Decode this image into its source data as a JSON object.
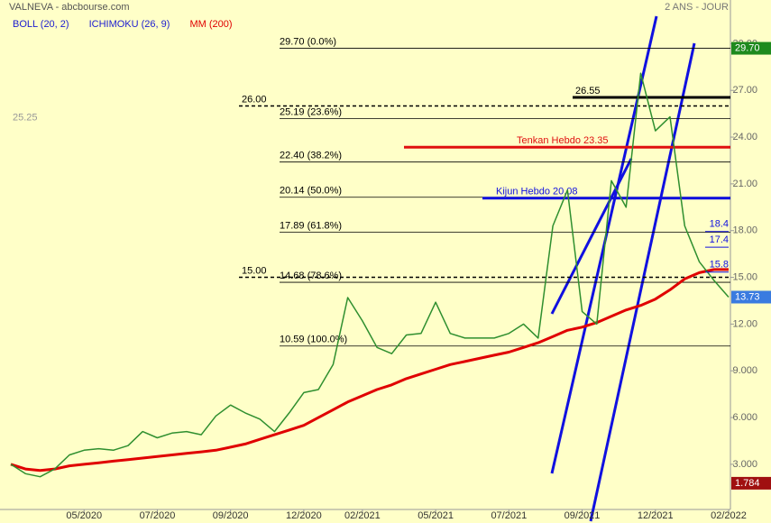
{
  "chart_data": {
    "type": "line",
    "title": "VALNEVA - abcbourse.com",
    "period": "2 ANS - JOUR",
    "categories": [
      null,
      null,
      null,
      null,
      null,
      "05/2020",
      null,
      null,
      null,
      null,
      "07/2020",
      null,
      null,
      null,
      null,
      "09/2020",
      null,
      null,
      null,
      null,
      "12/2020",
      null,
      null,
      null,
      "02/2021",
      null,
      null,
      null,
      null,
      "05/2021",
      null,
      null,
      null,
      null,
      "07/2021",
      null,
      null,
      null,
      null,
      "09/2021",
      null,
      null,
      null,
      null,
      "12/2021",
      null,
      null,
      null,
      null,
      "02/2022"
    ],
    "values": [
      3.0,
      2.4,
      2.2,
      2.7,
      3.6,
      3.9,
      4.0,
      3.9,
      4.2,
      5.1,
      4.7,
      5.0,
      5.1,
      4.9,
      6.1,
      6.8,
      6.3,
      5.9,
      5.1,
      6.3,
      7.6,
      7.8,
      9.4,
      13.7,
      12.2,
      10.5,
      10.1,
      11.3,
      11.4,
      13.4,
      11.4,
      11.1,
      11.1,
      11.1,
      11.4,
      12.0,
      11.1,
      18.3,
      20.6,
      12.8,
      12.0,
      21.2,
      19.5,
      28.1,
      24.4,
      25.3,
      18.3,
      16.0,
      14.8,
      13.73
    ],
    "color": "#2f8f2f",
    "indicators": [
      {
        "name": "BOLL (20, 2)",
        "color": "#1c1cd0"
      },
      {
        "name": "ICHIMOKU (26, 9)",
        "color": "#1c1cd0"
      },
      {
        "name": "MM (200)",
        "color": "#e00000",
        "values": [
          3.0,
          2.7,
          2.6,
          2.7,
          2.9,
          3.0,
          3.1,
          3.2,
          3.3,
          3.4,
          3.5,
          3.6,
          3.7,
          3.8,
          3.9,
          4.1,
          4.3,
          4.6,
          4.9,
          5.2,
          5.5,
          6.0,
          6.5,
          7.0,
          7.4,
          7.8,
          8.1,
          8.5,
          8.8,
          9.1,
          9.4,
          9.6,
          9.8,
          10.0,
          10.2,
          10.5,
          10.8,
          11.2,
          11.6,
          11.8,
          12.1,
          12.5,
          12.9,
          13.2,
          13.6,
          14.2,
          14.9,
          15.3,
          15.5,
          15.5
        ]
      }
    ],
    "ylim": [
      0.1,
      32.8
    ],
    "yticks": [
      {
        "value": 3,
        "label": "3.000"
      },
      {
        "value": 6,
        "label": "6.000"
      },
      {
        "value": 9,
        "label": "9.000"
      },
      {
        "value": 12,
        "label": "12.00"
      },
      {
        "value": 15,
        "label": "15.00"
      },
      {
        "value": 18,
        "label": "18.00"
      },
      {
        "value": 21,
        "label": "21.00"
      },
      {
        "value": 24,
        "label": "24.00"
      },
      {
        "value": 27,
        "label": "27.00"
      },
      {
        "value": 30,
        "label": "30.00"
      }
    ],
    "levels": [
      {
        "label": "29.70  (0.0%)",
        "value": 29.7,
        "color": "#000000",
        "style": "thin"
      },
      {
        "label": "25.19  (23.6%)",
        "value": 25.19,
        "color": "#000000",
        "style": "thin"
      },
      {
        "label": "22.40  (38.2%)",
        "value": 22.4,
        "color": "#000000",
        "style": "thin"
      },
      {
        "label": "20.14  (50.0%)",
        "value": 20.14,
        "color": "#000000",
        "style": "thin"
      },
      {
        "label": "17.89  (61.8%)",
        "value": 17.89,
        "color": "#000000",
        "style": "thin"
      },
      {
        "label": "14.68  (78.6%)",
        "value": 14.68,
        "color": "#000000",
        "style": "thin"
      },
      {
        "label": "10.59  (100.0%)",
        "value": 10.59,
        "color": "#000000",
        "style": "thin"
      },
      {
        "label": "26.00",
        "value": 26.0,
        "color": "#000000",
        "style": "dashed"
      },
      {
        "label": "15.00",
        "value": 15.0,
        "color": "#000000",
        "style": "dashed"
      },
      {
        "label": "26.55",
        "value": 26.55,
        "color": "#000000",
        "style": "thick"
      },
      {
        "label": "Tenkan Hebdo  23.35",
        "value": 23.35,
        "color": "#e01010",
        "style": "thick"
      },
      {
        "label": "Kijun Hebdo  20.08",
        "value": 20.08,
        "color": "#1010e0",
        "style": "thick"
      }
    ],
    "side_labels": [
      18.4,
      17.4,
      15.8
    ],
    "left_label": 25.25,
    "price_tags": [
      {
        "value": 29.7,
        "label": "29.70",
        "color": "#1e8a1e"
      },
      {
        "value": 13.73,
        "label": "13.73",
        "color": "#3a7be0"
      },
      {
        "value": 1.784,
        "label": "1.784",
        "color": "#a01010"
      }
    ]
  }
}
